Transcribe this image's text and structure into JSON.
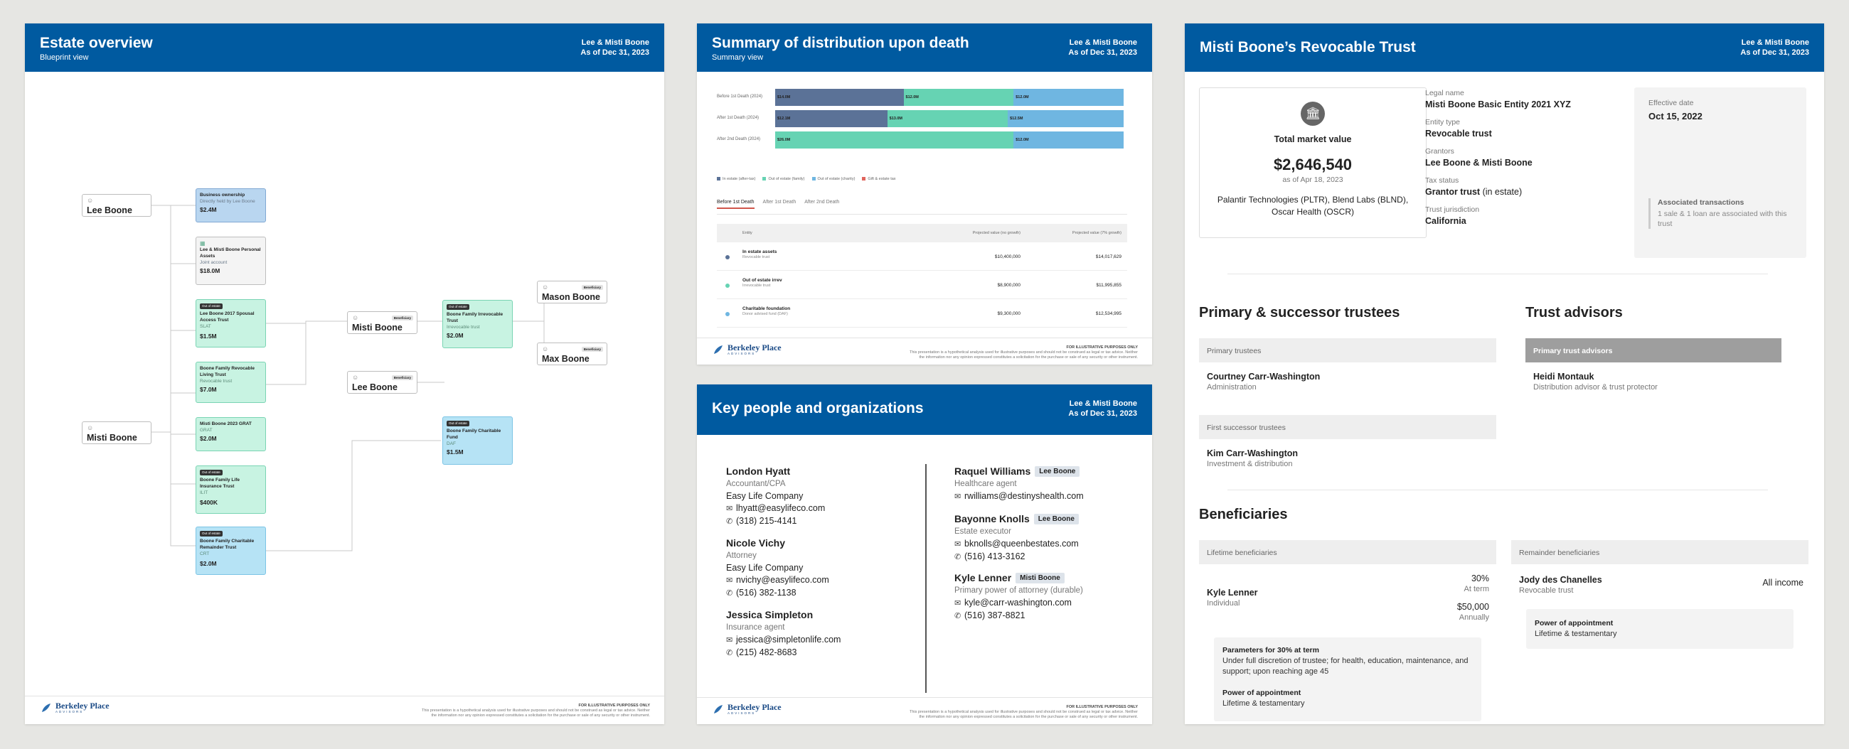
{
  "estate": {
    "title": "Estate overview",
    "subtitle": "Blueprint view",
    "names": "Lee & Misti Boone",
    "asof": "As of Dec 31, 2023",
    "people": {
      "lee": "Lee Boone",
      "misti": "Misti Boone",
      "misti2": "Misti Boone",
      "lee2": "Lee Boone",
      "mason": "Mason Boone",
      "max": "Max Boone",
      "beneficiary": "Beneficiary"
    },
    "entities": [
      {
        "name": "Business ownership",
        "sub": "Directly held by Lee Boone",
        "amount": "$2.4M"
      },
      {
        "name": "Lee & Misti Boone Personal Assets",
        "sub": "Joint account",
        "amount": "$18.0M"
      },
      {
        "tag": "Out of estate",
        "name": "Lee Boone 2017 Spousal Access Trust",
        "sub": "SLAT",
        "amount": "$1.5M"
      },
      {
        "name": "Boone Family Revocable Living Trust",
        "sub": "Revocable trust",
        "amount": "$7.0M"
      },
      {
        "name": "Misti Boone 2023 GRAT",
        "sub": "GRAT",
        "amount": "$2.0M"
      },
      {
        "tag": "Out of estate",
        "name": "Boone Family Life Insurance Trust",
        "sub": "ILIT",
        "amount": "$400K"
      },
      {
        "tag": "Out of estate",
        "name": "Boone Family Charitable Remainder Trust",
        "sub": "CRT",
        "amount": "$2.0M"
      },
      {
        "tag": "Out of estate",
        "name": "Boone Family Irrevocable Trust",
        "sub": "Irrevocable trust",
        "amount": "$2.0M"
      },
      {
        "tag": "Out of estate",
        "name": "Boone Family Charitable Fund",
        "sub": "DAF",
        "amount": "$1.5M"
      }
    ]
  },
  "footer": {
    "brand": "Berkeley Place",
    "brand_sub": "ADVISORS",
    "note_title": "FOR ILLUSTRATIVE PURPOSES ONLY",
    "note_body": "This presentation is a hypothetical analysis used for illustrative purposes and should not be construed as legal or tax advice. Neither the information nor any opinion expressed constitutes a solicitation for the purchase or sale of any security or other instrument."
  },
  "summary": {
    "title": "Summary of distribution upon death",
    "subtitle": "Summary view",
    "names": "Lee & Misti Boone",
    "asof": "As of Dec 31, 2023",
    "chart_data": {
      "type": "bar",
      "categories": [
        "Before 1st Death (2024)",
        "After 1st Death (2024)",
        "After 2nd Death (2024)"
      ],
      "series": [
        {
          "name": "In estate (after-tax)",
          "values": [
            14.0,
            12.1,
            0
          ],
          "labels": [
            "$14.0M",
            "$12.1M",
            ""
          ]
        },
        {
          "name": "Out of estate (family)",
          "values": [
            12.0,
            13.0,
            26.0
          ],
          "labels": [
            "$12.0M",
            "$13.0M",
            "$26.0M"
          ]
        },
        {
          "name": "Out of estate (charity)",
          "values": [
            12.0,
            12.5,
            12.0
          ],
          "labels": [
            "$12.0M",
            "$12.5M",
            "$12.0M"
          ]
        },
        {
          "name": "Gift & estate tax",
          "values": [
            0,
            0,
            0
          ],
          "labels": [
            "",
            "",
            ""
          ]
        }
      ],
      "colors": [
        "#5b7297",
        "#66d3b3",
        "#6fb6e1",
        "#e0645c"
      ]
    },
    "tabs": [
      "Before 1st Death",
      "After 1st Death",
      "After 2nd Death"
    ],
    "table": {
      "headers": [
        "Entity",
        "Projected value (no growth)",
        "Projected value (7% growth)"
      ],
      "rows": [
        {
          "name": "In estate assets",
          "sub": "Revocable trust",
          "v1": "$10,400,000",
          "v2": "$14,017,629",
          "color": "#5b7297"
        },
        {
          "name": "Out of estate irrev",
          "sub": "Irrevocable trust",
          "v1": "$8,900,000",
          "v2": "$11,995,855",
          "color": "#66d3b3"
        },
        {
          "name": "Charitable foundation",
          "sub": "Donor advised fund (DAF)",
          "v1": "$9,300,000",
          "v2": "$12,534,995",
          "color": "#6fb6e1"
        }
      ]
    }
  },
  "keypeople": {
    "title": "Key people and organizations",
    "names": "Lee & Misti Boone",
    "asof": "As of Dec 31, 2023",
    "left": [
      {
        "name": "London Hyatt",
        "role": "Accountant/CPA",
        "org": "Easy Life Company",
        "email": "lhyatt@easylifeco.com",
        "phone": "(318) 215-4141"
      },
      {
        "name": "Nicole Vichy",
        "role": "Attorney",
        "org": "Easy Life Company",
        "email": "nvichy@easylifeco.com",
        "phone": "(516) 382-1138"
      },
      {
        "name": "Jessica Simpleton",
        "role": "Insurance agent",
        "email": "jessica@simpletonlife.com",
        "phone": "(215) 482-8683"
      }
    ],
    "right": [
      {
        "name": "Raquel Williams",
        "rel": "Lee Boone",
        "role": "Healthcare agent",
        "email": "rwilliams@destinyshealth.com"
      },
      {
        "name": "Bayonne Knolls",
        "rel": "Lee Boone",
        "role": "Estate executor",
        "email": "bknolls@queenbestates.com",
        "phone": "(516) 413-3162"
      },
      {
        "name": "Kyle Lenner",
        "rel": "Misti Boone",
        "role": "Primary power of attorney (durable)",
        "email": "kyle@carr-washington.com",
        "phone": "(516) 387-8821"
      }
    ]
  },
  "trust": {
    "title": "Misti Boone’s Revocable Trust",
    "names": "Lee & Misti Boone",
    "asof": "As of Dec 31, 2023",
    "tmv_label": "Total market value",
    "tmv_value": "$2,646,540",
    "tmv_asof": "as of Apr 18, 2023",
    "holdings": "Palantir Technologies (PLTR), Blend Labs (BLND), Oscar Health (OSCR)",
    "facts": [
      {
        "label": "Legal name",
        "value": "Misti Boone Basic Entity 2021 XYZ"
      },
      {
        "label": "Entity type",
        "value": "Revocable trust"
      },
      {
        "label": "Grantors",
        "value": "Lee Boone & Misti Boone"
      },
      {
        "label": "Tax status",
        "value": "Grantor trust",
        "extra": " (in estate)"
      },
      {
        "label": "Trust jurisdiction",
        "value": "California"
      }
    ],
    "eff_label": "Effective date",
    "eff_value": "Oct 15, 2022",
    "assoc_title": "Associated transactions",
    "assoc_body": "1 sale & 1 loan are associated with this trust",
    "trustees_title": "Primary & successor trustees",
    "primary_trustees": "Primary trustees",
    "pt_name": "Courtney Carr-Washington",
    "pt_role": "Administration",
    "first_successor": "First successor trustees",
    "fs_name": "Kim Carr-Washington",
    "fs_role": "Investment & distribution",
    "advisors_title": "Trust advisors",
    "primary_advisors": "Primary trust advisors",
    "adv_name": "Heidi Montauk",
    "adv_role": "Distribution advisor & trust protector",
    "beneficiaries_title": "Beneficiaries",
    "lifetime": "Lifetime beneficiaries",
    "lb_name": "Kyle Lenner",
    "lb_role": "Individual",
    "lb_pct": "30%",
    "lb_pct_note": "At term",
    "lb_amt": "$50,000",
    "lb_amt_note": "Annually",
    "params_title": "Parameters for 30% at term",
    "params_body": "Under full discretion of trustee; for health, education, maintenance, and support; upon reaching age 45",
    "poa_title": "Power of appointment",
    "poa_body": "Lifetime & testamentary",
    "remainder": "Remainder beneficiaries",
    "rb_name": "Jody des Chanelles",
    "rb_role": "Revocable trust",
    "rb_value": "All income",
    "rb_poa_title": "Power of appointment",
    "rb_poa_body": "Lifetime & testamentary"
  }
}
